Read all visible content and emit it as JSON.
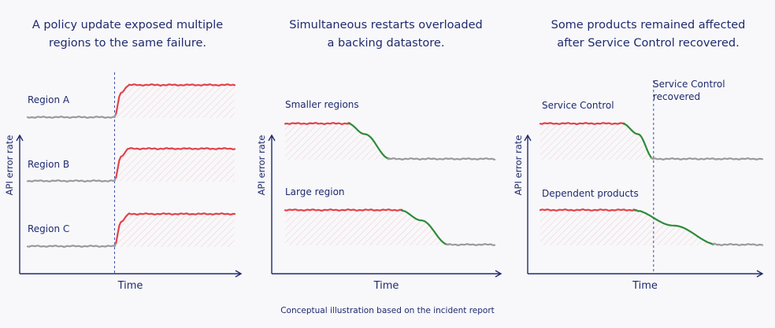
{
  "footer": "Conceptual illustration based on the incident report",
  "colors": {
    "axis": "#1f2a6e",
    "normal": "#9a9a9a",
    "error": "#e0434b",
    "recovery": "#2f8a3a",
    "marker": "#3b4aa8"
  },
  "chart_data": [
    {
      "type": "line",
      "title": [
        "A policy update exposed multiple",
        "regions to the same failure."
      ],
      "xlabel": "Time",
      "ylabel": "API error rate",
      "xlim": [
        0,
        100
      ],
      "event_x": 42,
      "event_label": "",
      "series": [
        {
          "name": "Region A",
          "x": [
            0,
            42,
            45,
            49,
            100
          ],
          "y": [
            0,
            0,
            0.75,
            1,
            1
          ]
        },
        {
          "name": "Region B",
          "x": [
            0,
            42,
            45,
            49,
            100
          ],
          "y": [
            0,
            0,
            0.75,
            1,
            1
          ]
        },
        {
          "name": "Region C",
          "x": [
            0,
            42,
            45,
            49,
            100
          ],
          "y": [
            0,
            0,
            0.75,
            1,
            1
          ]
        }
      ]
    },
    {
      "type": "line",
      "title": [
        "Simultaneous restarts overloaded",
        "a backing datastore."
      ],
      "xlabel": "Time",
      "ylabel": "API error rate",
      "xlim": [
        0,
        100
      ],
      "event_x": null,
      "event_label": "",
      "series": [
        {
          "name": "Smaller regions",
          "x": [
            0,
            30,
            38,
            50,
            100
          ],
          "y": [
            1,
            1,
            0.7,
            0,
            0
          ]
        },
        {
          "name": "Large region",
          "x": [
            0,
            55,
            65,
            78,
            100
          ],
          "y": [
            1,
            1,
            0.7,
            0,
            0
          ]
        }
      ]
    },
    {
      "type": "line",
      "title": [
        "Some products remained affected",
        "after Service Control recovered."
      ],
      "xlabel": "Time",
      "ylabel": "API error rate",
      "xlim": [
        0,
        100
      ],
      "event_x": 51,
      "event_label": [
        "Service Control",
        "recovered"
      ],
      "series": [
        {
          "name": "Service Control",
          "x": [
            0,
            37,
            44,
            51,
            100
          ],
          "y": [
            1,
            1,
            0.7,
            0,
            0
          ]
        },
        {
          "name": "Dependent products",
          "x": [
            0,
            42,
            60,
            80,
            100
          ],
          "y": [
            1,
            1,
            0.55,
            0,
            0
          ]
        }
      ]
    }
  ]
}
